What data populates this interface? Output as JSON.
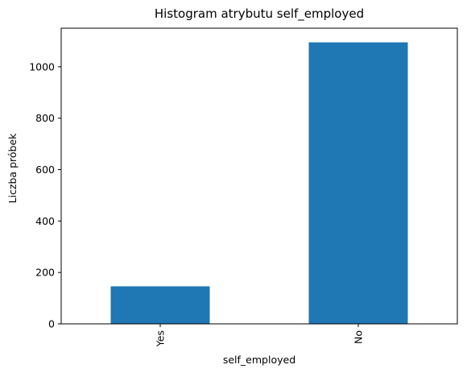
{
  "chart_data": {
    "type": "bar",
    "title": "Histogram atrybutu self_employed",
    "xlabel": "self_employed",
    "ylabel": "Liczba próbek",
    "categories": [
      "Yes",
      "No"
    ],
    "values": [
      146,
      1095
    ],
    "ylim": [
      0,
      1150
    ],
    "yticks": [
      0,
      200,
      400,
      600,
      800,
      1000
    ],
    "grid": false,
    "legend": "none",
    "bar_color": "#1f77b4",
    "tick_rotation": "vertical"
  }
}
